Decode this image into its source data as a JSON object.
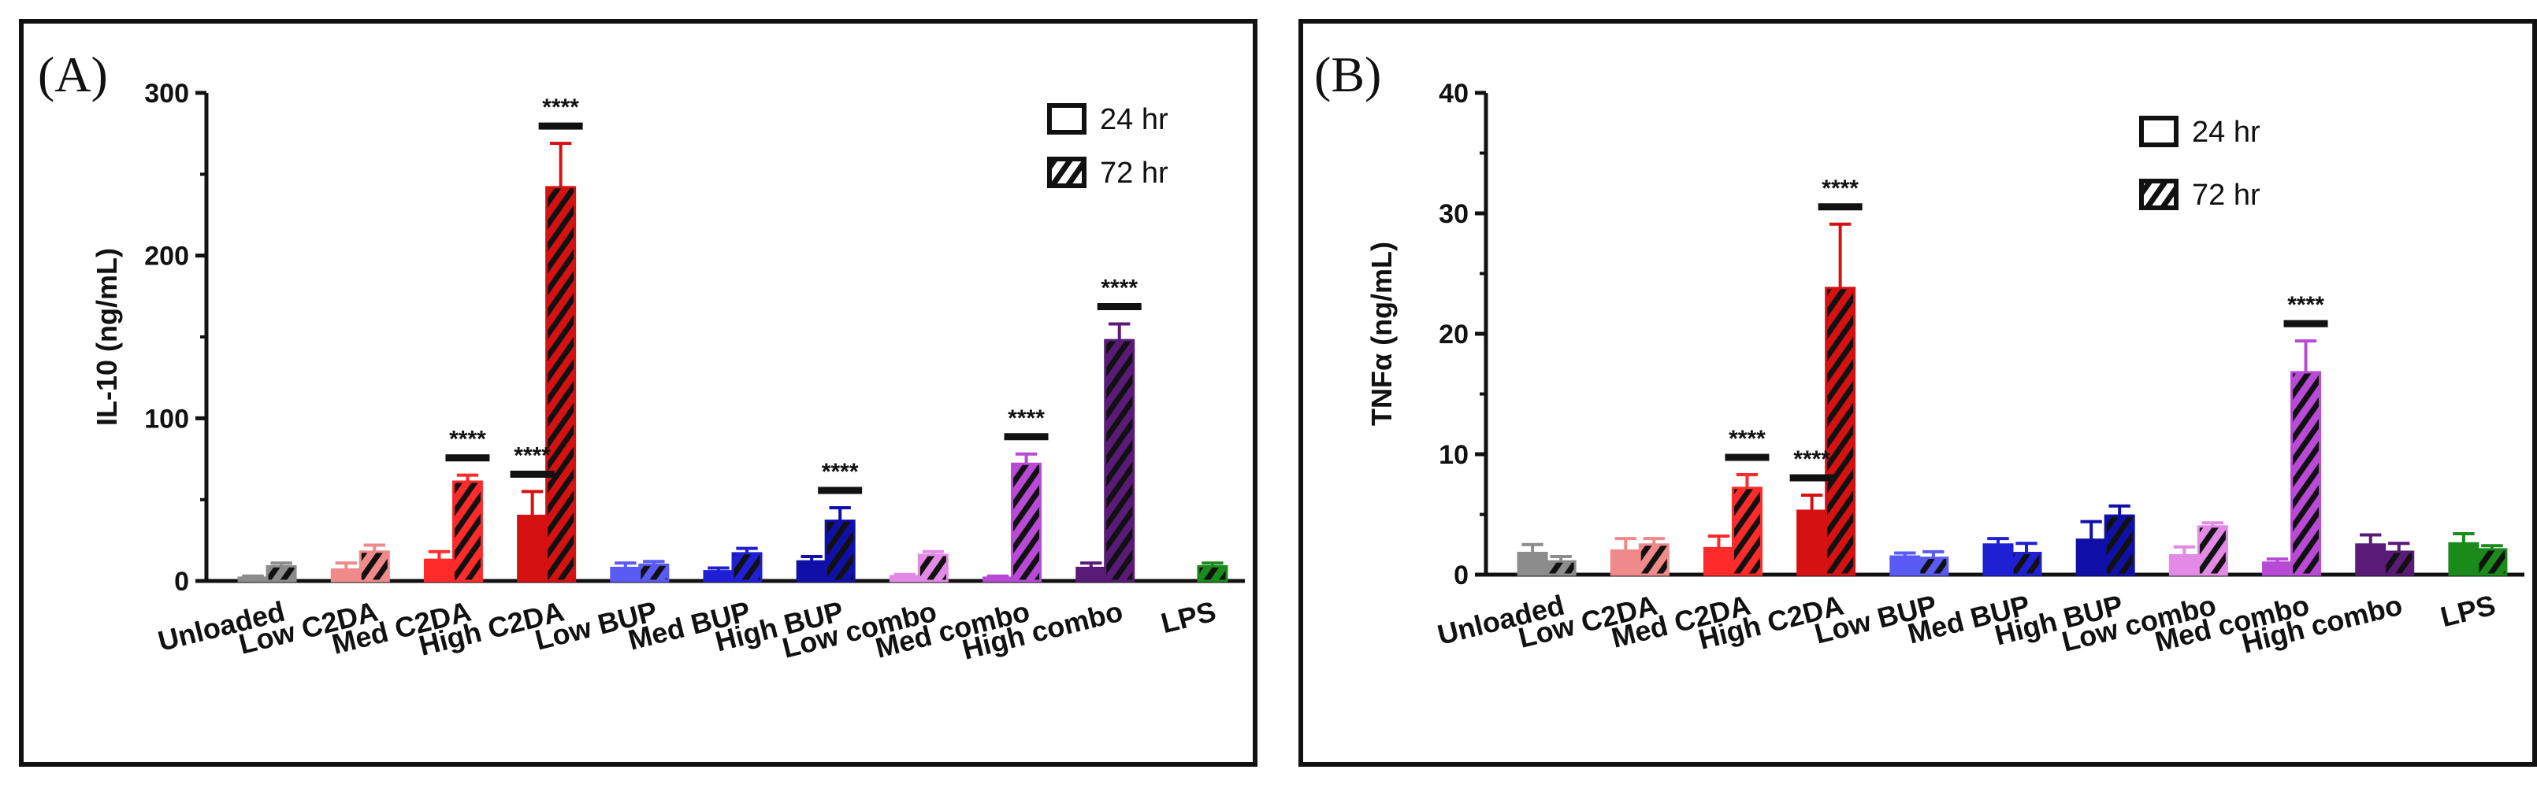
{
  "chart_data": [
    {
      "panel": "(A)",
      "type": "bar",
      "ylabel": "IL-10 (ng/mL)",
      "ylim": [
        0,
        300
      ],
      "yticks": [
        0,
        100,
        200,
        300
      ],
      "categories": [
        "Unloaded",
        "Low C2DA",
        "Med C2DA",
        "High C2DA",
        "Low BUP",
        "Med BUP",
        "High BUP",
        "Low combo",
        "Med combo",
        "High combo",
        "LPS"
      ],
      "colors": [
        "#8c8c8c",
        "#f08a8a",
        "#ff2a2a",
        "#d61111",
        "#5a5af5",
        "#1f1fd4",
        "#1010a8",
        "#e28ae6",
        "#b84ad6",
        "#5a1a78",
        "#1a8a1a"
      ],
      "series": [
        {
          "name": "24 hr",
          "values": [
            2,
            7,
            13,
            40,
            8,
            6,
            12,
            3,
            2,
            8,
            null
          ],
          "errors": [
            1,
            4,
            5,
            15,
            3,
            2,
            3,
            1,
            1,
            3,
            null
          ]
        },
        {
          "name": "72 hr",
          "values": [
            9,
            18,
            61,
            242,
            10,
            17,
            37,
            16,
            72,
            148,
            9
          ],
          "errors": [
            2,
            4,
            4,
            27,
            2,
            3,
            8,
            2,
            6,
            10,
            2
          ]
        }
      ],
      "significance": [
        {
          "category": "Med C2DA",
          "label": "****",
          "series": "72 hr"
        },
        {
          "category": "High C2DA",
          "label": "****",
          "series": "24 hr"
        },
        {
          "category": "High C2DA",
          "label": "****",
          "series": "72 hr"
        },
        {
          "category": "High BUP",
          "label": "****",
          "series": "72 hr"
        },
        {
          "category": "Med combo",
          "label": "****",
          "series": "72 hr"
        },
        {
          "category": "High combo",
          "label": "****",
          "series": "72 hr"
        }
      ],
      "legend": [
        "24 hr",
        "72 hr"
      ],
      "legend_placement": "top-right",
      "grid": false
    },
    {
      "panel": "(B)",
      "type": "bar",
      "ylabel": "TNFα (ng/mL)",
      "ylim": [
        0,
        40
      ],
      "yticks": [
        0,
        10,
        20,
        30,
        40
      ],
      "categories": [
        "Unloaded",
        "Low C2DA",
        "Med C2DA",
        "High C2DA",
        "Low BUP",
        "Med BUP",
        "High BUP",
        "Low combo",
        "Med combo",
        "High combo",
        "LPS"
      ],
      "colors": [
        "#8c8c8c",
        "#f08a8a",
        "#ff2a2a",
        "#d61111",
        "#5a5af5",
        "#1f1fd4",
        "#1010a8",
        "#e28ae6",
        "#b84ad6",
        "#5a1a78",
        "#1a8a1a"
      ],
      "series": [
        {
          "name": "24 hr",
          "values": [
            1.8,
            2.0,
            2.2,
            5.3,
            1.5,
            2.5,
            2.9,
            1.6,
            1.0,
            2.5,
            2.6
          ],
          "errors": [
            0.7,
            1.0,
            1.0,
            1.3,
            0.3,
            0.5,
            1.5,
            0.7,
            0.3,
            0.8,
            0.8
          ]
        },
        {
          "name": "72 hr",
          "values": [
            1.1,
            2.5,
            7.2,
            23.8,
            1.4,
            1.8,
            4.9,
            4.0,
            16.8,
            1.9,
            2.1
          ],
          "errors": [
            0.4,
            0.5,
            1.1,
            5.3,
            0.5,
            0.8,
            0.8,
            0.3,
            2.6,
            0.7,
            0.3
          ]
        }
      ],
      "significance": [
        {
          "category": "Med C2DA",
          "label": "****",
          "series": "72 hr"
        },
        {
          "category": "High C2DA",
          "label": "****",
          "series": "24 hr"
        },
        {
          "category": "High C2DA",
          "label": "****",
          "series": "72 hr"
        },
        {
          "category": "Med combo",
          "label": "****",
          "series": "72 hr"
        }
      ],
      "legend": [
        "24 hr",
        "72 hr"
      ],
      "legend_placement": "top-right",
      "grid": false
    }
  ]
}
